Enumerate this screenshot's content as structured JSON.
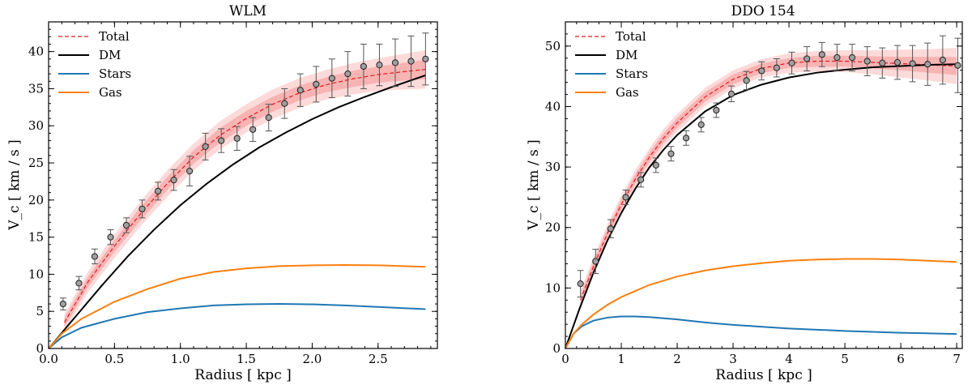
{
  "chart_data": [
    {
      "type": "line",
      "title": "WLM",
      "xlabel": "Radius [ kpc ]",
      "ylabel": "V_c [ km / s ]",
      "xlim": [
        0.0,
        2.95
      ],
      "ylim": [
        0,
        44
      ],
      "xticks": [
        0.0,
        0.5,
        1.0,
        1.5,
        2.0,
        2.5
      ],
      "xtick_labels": [
        "0.0",
        "0.5",
        "1.0",
        "1.5",
        "2.0",
        "2.5"
      ],
      "yticks": [
        0,
        5,
        10,
        15,
        20,
        25,
        30,
        35,
        40
      ],
      "ytick_labels": [
        "0",
        "5",
        "10",
        "15",
        "20",
        "25",
        "30",
        "35",
        "40"
      ],
      "legend": [
        {
          "label": "Total",
          "color": "#e41a1c",
          "style": "dashed"
        },
        {
          "label": "DM",
          "color": "#000000",
          "style": "solid"
        },
        {
          "label": "Stars",
          "color": "#1f77b4",
          "style": "solid"
        },
        {
          "label": "Gas",
          "color": "#ff7f0e",
          "style": "solid"
        }
      ],
      "series": [
        {
          "name": "Total",
          "color": "#e41a1c",
          "style": "dashed",
          "x": [
            0.12,
            0.3,
            0.5,
            0.7,
            0.9,
            1.1,
            1.3,
            1.5,
            1.7,
            1.9,
            2.1,
            2.3,
            2.5,
            2.7,
            2.86
          ],
          "y": [
            3.5,
            9.0,
            13.8,
            18.2,
            22.2,
            25.8,
            28.7,
            31.0,
            32.9,
            34.4,
            35.5,
            36.3,
            36.9,
            37.3,
            37.6
          ]
        },
        {
          "name": "DM",
          "color": "#000000",
          "style": "solid",
          "x": [
            0.0,
            0.2,
            0.4,
            0.6,
            0.8,
            1.0,
            1.2,
            1.4,
            1.6,
            1.8,
            2.0,
            2.2,
            2.4,
            2.6,
            2.86
          ],
          "y": [
            0,
            4.2,
            8.4,
            12.4,
            16.0,
            19.3,
            22.2,
            24.8,
            27.1,
            29.1,
            30.9,
            32.5,
            33.9,
            35.2,
            36.8
          ]
        },
        {
          "name": "Stars",
          "color": "#1f77b4",
          "style": "solid",
          "x": [
            0.0,
            0.1,
            0.25,
            0.5,
            0.75,
            1.0,
            1.25,
            1.5,
            1.75,
            2.0,
            2.25,
            2.5,
            2.86
          ],
          "y": [
            0,
            1.5,
            2.8,
            4.0,
            4.9,
            5.4,
            5.8,
            5.95,
            6.0,
            5.95,
            5.8,
            5.6,
            5.3
          ]
        },
        {
          "name": "Gas",
          "color": "#ff7f0e",
          "style": "solid",
          "x": [
            0.0,
            0.1,
            0.25,
            0.5,
            0.75,
            1.0,
            1.25,
            1.5,
            1.75,
            2.0,
            2.25,
            2.5,
            2.86
          ],
          "y": [
            0,
            2.0,
            4.0,
            6.3,
            8.0,
            9.4,
            10.3,
            10.8,
            11.1,
            11.2,
            11.25,
            11.2,
            11.0
          ]
        }
      ],
      "band_sigma": [
        {
          "x": [
            0.12,
            0.3,
            0.5,
            0.7,
            0.9,
            1.1,
            1.3,
            1.5,
            1.7,
            1.9,
            2.1,
            2.3,
            2.5,
            2.7,
            2.86
          ],
          "half_width_1": [
            0.6,
            0.7,
            0.8,
            0.9,
            0.9,
            0.9,
            1.0,
            1.0,
            1.0,
            1.0,
            1.0,
            1.1,
            1.1,
            1.2,
            1.3
          ],
          "half_width_2": [
            1.2,
            1.4,
            1.6,
            1.7,
            1.8,
            1.8,
            1.9,
            1.9,
            2.0,
            2.0,
            2.0,
            2.1,
            2.2,
            2.4,
            2.6
          ]
        }
      ],
      "observed": {
        "x": [
          0.11,
          0.23,
          0.35,
          0.47,
          0.59,
          0.71,
          0.83,
          0.95,
          1.07,
          1.19,
          1.31,
          1.43,
          1.55,
          1.67,
          1.79,
          1.91,
          2.03,
          2.15,
          2.27,
          2.39,
          2.51,
          2.63,
          2.75,
          2.86
        ],
        "y": [
          6.0,
          8.8,
          12.4,
          15.0,
          16.6,
          18.8,
          21.2,
          22.7,
          23.9,
          27.2,
          28.0,
          28.3,
          29.5,
          31.1,
          33.0,
          34.8,
          35.6,
          36.4,
          37.0,
          38.0,
          38.2,
          38.5,
          38.7,
          39.0
        ],
        "err": [
          0.8,
          0.9,
          1.0,
          1.0,
          1.0,
          1.2,
          1.2,
          1.4,
          2.0,
          1.8,
          1.6,
          1.6,
          1.6,
          1.8,
          2.0,
          2.2,
          2.4,
          2.6,
          3.0,
          3.0,
          2.8,
          3.2,
          3.4,
          3.5
        ]
      }
    },
    {
      "type": "line",
      "title": "DDO 154",
      "xlabel": "Radius [ kpc ]",
      "ylabel": "V_c [ km / s ]",
      "xlim": [
        0.0,
        7.1
      ],
      "ylim": [
        0,
        54
      ],
      "xticks": [
        0,
        1,
        2,
        3,
        4,
        5,
        6,
        7
      ],
      "xtick_labels": [
        "0",
        "1",
        "2",
        "3",
        "4",
        "5",
        "6",
        "7"
      ],
      "yticks": [
        0,
        10,
        20,
        30,
        40,
        50
      ],
      "ytick_labels": [
        "0",
        "10",
        "20",
        "30",
        "40",
        "50"
      ],
      "legend": [
        {
          "label": "Total",
          "color": "#e41a1c",
          "style": "dashed"
        },
        {
          "label": "DM",
          "color": "#000000",
          "style": "solid"
        },
        {
          "label": "Stars",
          "color": "#1f77b4",
          "style": "solid"
        },
        {
          "label": "Gas",
          "color": "#ff7f0e",
          "style": "solid"
        }
      ],
      "series": [
        {
          "name": "Total",
          "color": "#e41a1c",
          "style": "dashed",
          "x": [
            0.27,
            0.5,
            0.75,
            1.0,
            1.25,
            1.5,
            1.75,
            2.0,
            2.5,
            3.0,
            3.5,
            4.0,
            4.5,
            5.0,
            5.5,
            6.0,
            6.5,
            7.0
          ],
          "y": [
            8.0,
            13.5,
            19.0,
            23.8,
            28.0,
            31.6,
            34.7,
            37.3,
            41.6,
            44.5,
            46.3,
            47.2,
            47.5,
            47.5,
            47.3,
            47.1,
            46.9,
            46.7
          ]
        },
        {
          "name": "DM",
          "color": "#000000",
          "style": "solid",
          "x": [
            0.0,
            0.25,
            0.5,
            0.75,
            1.0,
            1.25,
            1.5,
            1.75,
            2.0,
            2.5,
            3.0,
            3.5,
            4.0,
            4.5,
            5.0,
            5.5,
            6.0,
            6.5,
            7.0
          ],
          "y": [
            0,
            6.5,
            12.5,
            17.8,
            22.4,
            26.4,
            29.9,
            32.8,
            35.3,
            39.2,
            41.9,
            43.6,
            44.8,
            45.6,
            46.1,
            46.5,
            46.7,
            46.9,
            47.0
          ]
        },
        {
          "name": "Stars",
          "color": "#1f77b4",
          "style": "solid",
          "x": [
            0.0,
            0.15,
            0.3,
            0.5,
            0.75,
            1.0,
            1.25,
            1.5,
            2.0,
            2.5,
            3.0,
            4.0,
            5.0,
            6.0,
            7.0
          ],
          "y": [
            0,
            2.5,
            3.7,
            4.6,
            5.1,
            5.3,
            5.3,
            5.2,
            4.8,
            4.3,
            3.9,
            3.3,
            2.9,
            2.6,
            2.4
          ]
        },
        {
          "name": "Gas",
          "color": "#ff7f0e",
          "style": "solid",
          "x": [
            0.0,
            0.15,
            0.3,
            0.5,
            0.75,
            1.0,
            1.5,
            2.0,
            2.5,
            3.0,
            3.5,
            4.0,
            4.5,
            5.0,
            5.5,
            6.0,
            6.5,
            7.0
          ],
          "y": [
            0,
            2.5,
            4.0,
            5.6,
            7.2,
            8.5,
            10.5,
            11.9,
            12.9,
            13.6,
            14.1,
            14.5,
            14.7,
            14.8,
            14.8,
            14.7,
            14.5,
            14.3
          ]
        }
      ],
      "band_sigma": [
        {
          "x": [
            0.27,
            0.5,
            0.75,
            1.0,
            1.25,
            1.5,
            1.75,
            2.0,
            2.5,
            3.0,
            3.5,
            4.0,
            4.5,
            5.0,
            5.5,
            6.0,
            6.5,
            7.0
          ],
          "half_width_1": [
            0.8,
            0.8,
            0.8,
            0.8,
            0.8,
            0.8,
            0.8,
            0.8,
            0.8,
            0.8,
            0.8,
            0.8,
            0.9,
            0.9,
            1.0,
            1.1,
            1.3,
            1.5
          ],
          "half_width_2": [
            1.5,
            1.5,
            1.5,
            1.5,
            1.5,
            1.5,
            1.5,
            1.5,
            1.5,
            1.5,
            1.5,
            1.6,
            1.7,
            1.8,
            2.0,
            2.3,
            2.6,
            3.0
          ]
        }
      ],
      "observed": {
        "x": [
          0.27,
          0.54,
          0.81,
          1.08,
          1.35,
          1.62,
          1.89,
          2.16,
          2.43,
          2.7,
          2.97,
          3.24,
          3.51,
          3.78,
          4.05,
          4.32,
          4.59,
          4.86,
          5.13,
          5.4,
          5.67,
          5.94,
          6.21,
          6.48,
          6.75,
          7.02
        ],
        "y": [
          10.7,
          14.4,
          19.8,
          25.0,
          27.9,
          30.3,
          32.2,
          34.8,
          37.0,
          39.4,
          42.1,
          44.3,
          45.9,
          46.4,
          47.2,
          47.9,
          48.6,
          48.1,
          48.1,
          47.5,
          47.2,
          47.3,
          47.1,
          47.0,
          47.7,
          46.8
        ],
        "err": [
          2.2,
          2.0,
          1.5,
          1.2,
          1.2,
          1.2,
          1.2,
          1.2,
          1.2,
          1.2,
          1.3,
          1.5,
          1.5,
          1.5,
          1.8,
          2.0,
          2.0,
          2.2,
          2.2,
          2.4,
          2.5,
          2.8,
          3.0,
          3.5,
          4.0,
          4.5
        ]
      }
    }
  ]
}
